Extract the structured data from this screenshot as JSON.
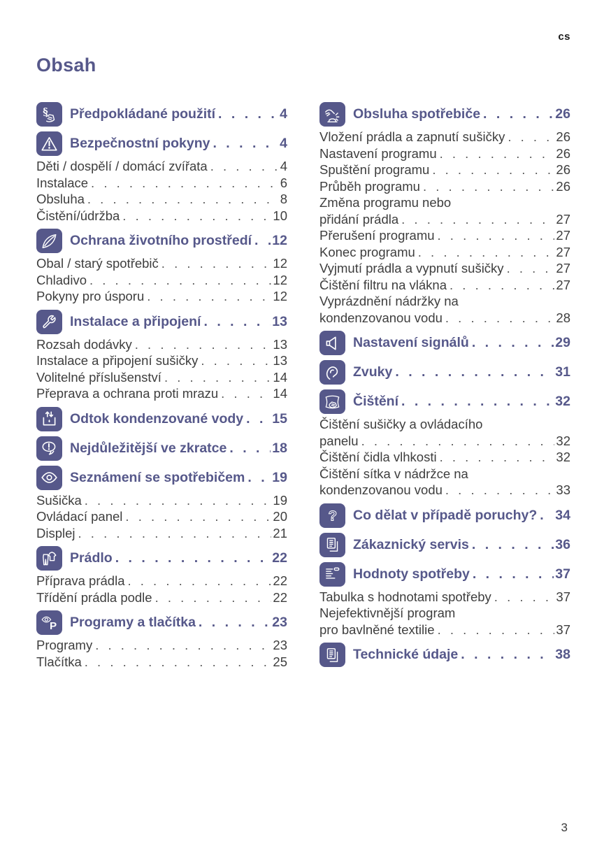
{
  "page": {
    "lang_marker": "cs",
    "title": "Obsah",
    "page_number": "3"
  },
  "colors": {
    "accent": "#56588a",
    "body_text": "#3e3e3e"
  },
  "columns": [
    {
      "sections": [
        {
          "icon": "paragraph-hand-icon",
          "title": "Předpokládané použití",
          "page": "4",
          "items": []
        },
        {
          "icon": "warning-triangle-icon",
          "title": "Bezpečnostní pokyny",
          "page": "4",
          "items": [
            {
              "lines": [
                "Děti / dospělí / domácí zvířata"
              ],
              "page": "4"
            },
            {
              "lines": [
                "Instalace"
              ],
              "page": "6"
            },
            {
              "lines": [
                "Obsluha"
              ],
              "page": "8"
            },
            {
              "lines": [
                "Čistění/údržba"
              ],
              "page": "10"
            }
          ]
        },
        {
          "icon": "leaf-icon",
          "title": "Ochrana životního prostředí",
          "page": "12",
          "items": [
            {
              "lines": [
                "Obal / starý spotřebič"
              ],
              "page": "12"
            },
            {
              "lines": [
                "Chladivo"
              ],
              "page": "12"
            },
            {
              "lines": [
                "Pokyny pro úsporu"
              ],
              "page": "12"
            }
          ]
        },
        {
          "icon": "wrench-icon",
          "title": "Instalace a připojení",
          "page": "13",
          "items": [
            {
              "lines": [
                "Rozsah dodávky"
              ],
              "page": "13"
            },
            {
              "lines": [
                "Instalace a připojení sušičky"
              ],
              "page": "13"
            },
            {
              "lines": [
                "Volitelné příslušenství"
              ],
              "page": "14"
            },
            {
              "lines": [
                "Přeprava a ochrana proti mrazu"
              ],
              "page": "14"
            }
          ]
        },
        {
          "icon": "condensate-drain-icon",
          "title": "Odtok kondenzované vody",
          "page": "15",
          "items": []
        },
        {
          "icon": "speech-bubble-icon",
          "title": "Nejdůležitější ve zkratce",
          "page": "18",
          "items": []
        },
        {
          "icon": "eye-icon",
          "title": "Seznámení se spotřebičem",
          "page": "19",
          "items": [
            {
              "lines": [
                "Sušička"
              ],
              "page": "19"
            },
            {
              "lines": [
                "Ovládací panel"
              ],
              "page": "20"
            },
            {
              "lines": [
                "Displej"
              ],
              "page": "21"
            }
          ]
        },
        {
          "icon": "laundry-icon",
          "title": "Prádlo",
          "page": "22",
          "items": [
            {
              "lines": [
                "Příprava prádla"
              ],
              "page": "22"
            },
            {
              "lines": [
                "Třídění prádla podle"
              ],
              "page": "22"
            }
          ]
        },
        {
          "icon": "programs-icon",
          "title": "Programy a tlačítka",
          "page": "23",
          "items": [
            {
              "lines": [
                "Programy"
              ],
              "page": "23"
            },
            {
              "lines": [
                "Tlačítka"
              ],
              "page": "25"
            }
          ]
        }
      ]
    },
    {
      "sections": [
        {
          "icon": "hand-press-icon",
          "title": "Obsluha spotřebiče",
          "page": "26",
          "items": [
            {
              "lines": [
                "Vložení prádla a zapnutí sušičky"
              ],
              "page": "26"
            },
            {
              "lines": [
                "Nastavení programu"
              ],
              "page": "26"
            },
            {
              "lines": [
                "Spuštění programu"
              ],
              "page": "26"
            },
            {
              "lines": [
                "Průběh programu"
              ],
              "page": "26"
            },
            {
              "lines": [
                "Změna programu nebo",
                "přidání prádla"
              ],
              "page": "27"
            },
            {
              "lines": [
                "Přerušení programu"
              ],
              "page": "27"
            },
            {
              "lines": [
                "Konec programu"
              ],
              "page": "27"
            },
            {
              "lines": [
                "Vyjmutí prádla a vypnutí sušičky"
              ],
              "page": "27"
            },
            {
              "lines": [
                "Čištění filtru na vlákna"
              ],
              "page": "27"
            },
            {
              "lines": [
                "Vyprázdnění nádržky na",
                "kondenzovanou vodu"
              ],
              "page": "28"
            }
          ]
        },
        {
          "icon": "speaker-icon",
          "title": "Nastavení signálů",
          "page": "29",
          "items": []
        },
        {
          "icon": "ear-icon",
          "title": "Zvuky",
          "page": "31",
          "items": []
        },
        {
          "icon": "cleaning-cloth-icon",
          "title": "Čištění",
          "page": "32",
          "items": [
            {
              "lines": [
                "Čištění sušičky a ovládacího",
                "panelu"
              ],
              "page": "32"
            },
            {
              "lines": [
                "Čištění čidla vlhkosti"
              ],
              "page": "32"
            },
            {
              "lines": [
                "Čištění sítka v nádržce na",
                "kondenzovanou vodu"
              ],
              "page": "33"
            }
          ]
        },
        {
          "icon": "question-mark-icon",
          "title": "Co dělat v případě poruchy?",
          "page": "34",
          "items": []
        },
        {
          "icon": "document-icon",
          "title": "Zákaznický servis",
          "page": "36",
          "items": []
        },
        {
          "icon": "consumption-table-icon",
          "title": "Hodnoty spotřeby",
          "page": "37",
          "items": [
            {
              "lines": [
                "Tabulka s hodnotami spotřeby"
              ],
              "page": "37"
            },
            {
              "lines": [
                "Nejefektivnější program",
                "pro bavlněné textilie"
              ],
              "page": "37"
            }
          ]
        },
        {
          "icon": "document-icon",
          "title": "Technické údaje",
          "page": "38",
          "items": []
        }
      ]
    }
  ]
}
